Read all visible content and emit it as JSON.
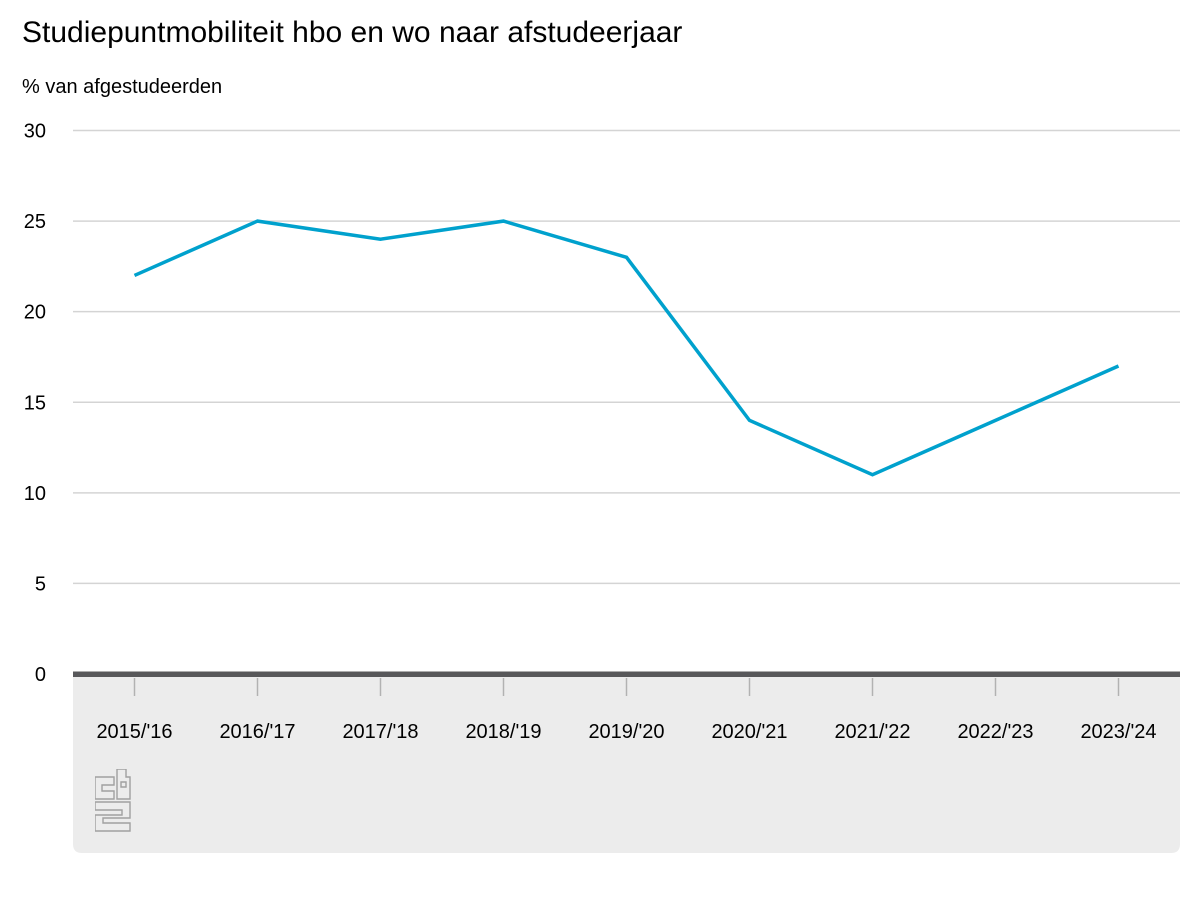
{
  "header": {
    "title": "Studiepuntmobiliteit hbo en wo naar afstudeerjaar",
    "subtitle": "% van afgestudeerden"
  },
  "chart_data": {
    "type": "line",
    "title": "Studiepuntmobiliteit hbo en wo naar afstudeerjaar",
    "ylabel": "% van afgestudeerden",
    "xlabel": "",
    "categories": [
      "2015/'16",
      "2016/'17",
      "2017/'18",
      "2018/'19",
      "2019/'20",
      "2020/'21",
      "2021/'22",
      "2022/'23",
      "2023/'24"
    ],
    "values": [
      22,
      25,
      24,
      25,
      23,
      14,
      11,
      14,
      17
    ],
    "ylim": [
      0,
      30
    ],
    "yticks": [
      0,
      5,
      10,
      15,
      20,
      25,
      30
    ],
    "grid": true,
    "legend": false
  },
  "colors": {
    "line": "#00a1cd",
    "gridline": "#d4d4d4",
    "zero_axis": "#58585a",
    "tick": "#b2b2b2",
    "band": "#ececec",
    "text": "#000000",
    "logo": "#a0a0a0"
  },
  "logo": {
    "name": "cbs-logo"
  }
}
